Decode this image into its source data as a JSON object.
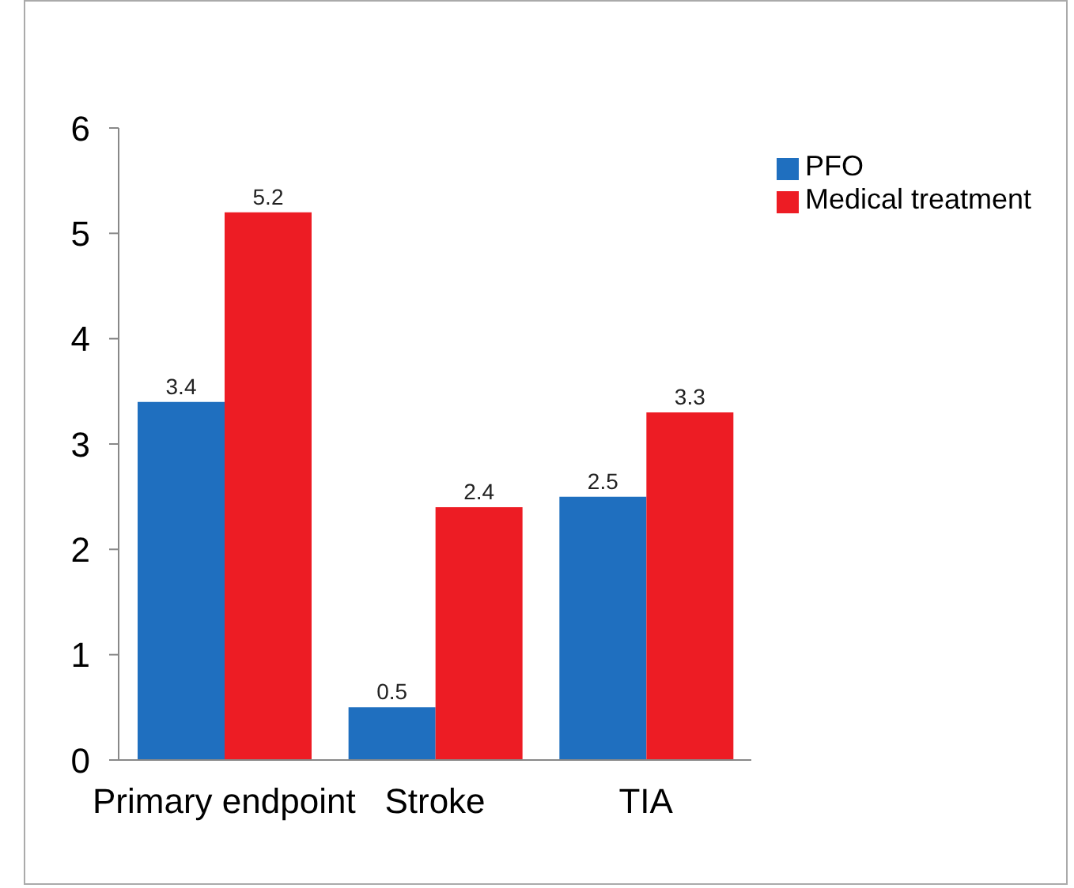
{
  "chart_data": {
    "type": "bar",
    "categories": [
      "Primary endpoint",
      "Stroke",
      "TIA"
    ],
    "series": [
      {
        "name": "PFO",
        "color": "#1f6fbf",
        "values": [
          3.4,
          0.5,
          2.5
        ]
      },
      {
        "name": "Medical treatment",
        "color": "#ed1c24",
        "values": [
          5.2,
          2.4,
          3.3
        ]
      }
    ],
    "ylim": [
      0,
      6
    ],
    "yticks": [
      0,
      1,
      2,
      3,
      4,
      5,
      6
    ],
    "grid": false,
    "legend": "top right",
    "data_labels": true
  }
}
